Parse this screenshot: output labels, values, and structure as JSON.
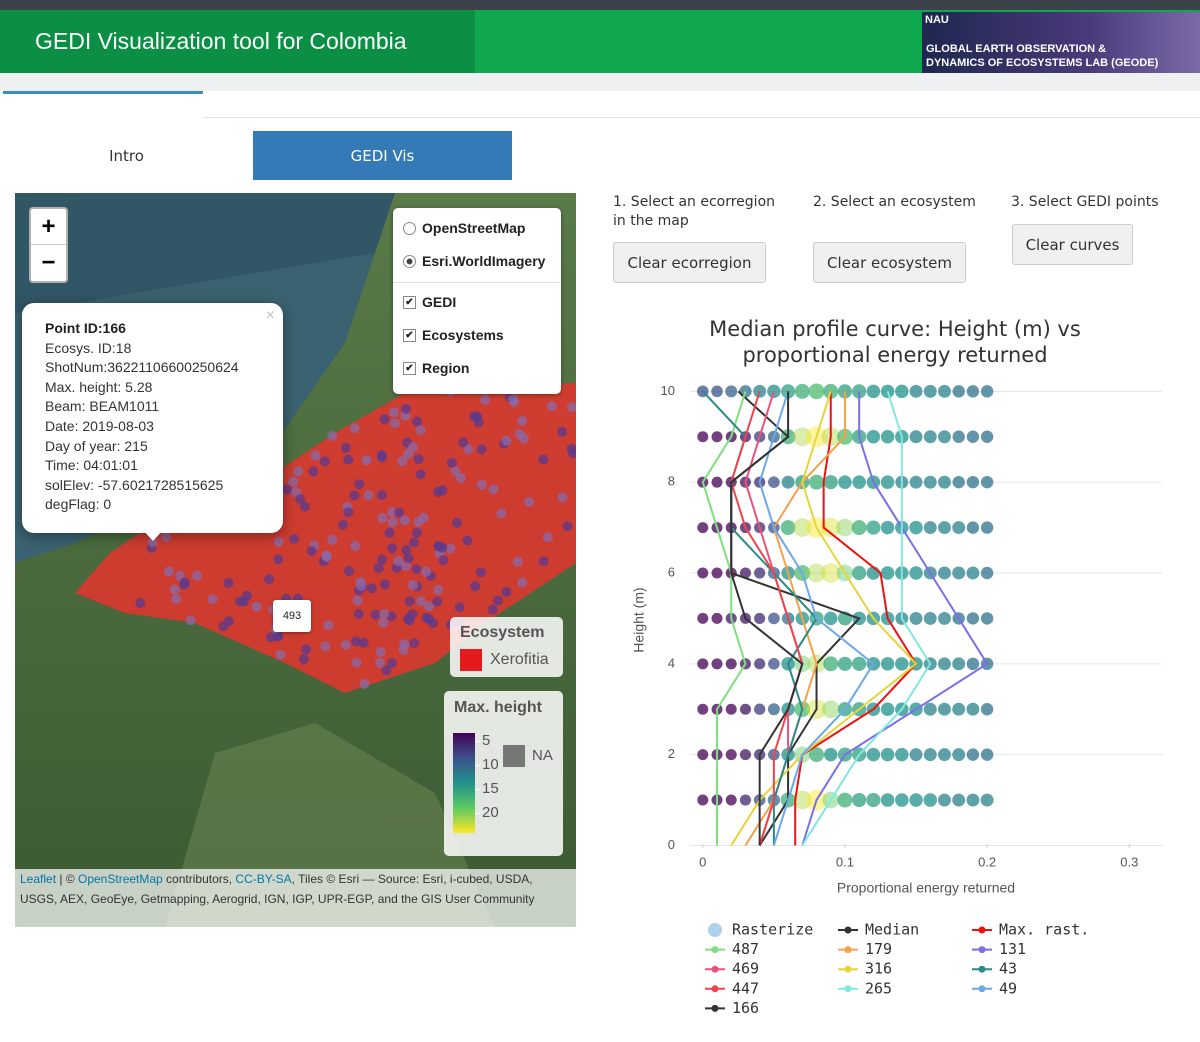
{
  "header": {
    "title": "GEDI Visualization tool for Colombia",
    "logo_lines": [
      "NAU",
      "GLOBAL EARTH OBSERVATION &",
      "DYNAMICS OF ECOSYSTEMS LAB (GEODE)"
    ]
  },
  "tabs": [
    "Intro",
    "GEDI Vis"
  ],
  "map": {
    "zoom": [
      "+",
      "−"
    ],
    "basemaps": [
      "OpenStreetMap",
      "Esri.WorldImagery"
    ],
    "overlays": [
      "GEDI",
      "Ecosystems",
      "Region"
    ],
    "popup": {
      "close": "×",
      "title": "Point ID:166",
      "lines": [
        "Ecosys. ID:18",
        "ShotNum:36221106600250624",
        "Max. height: 5.28",
        "Beam: BEAM1011",
        "Date: 2019-08-03",
        "Day of year: 215",
        "Time: 04:01:01",
        "solElev: -57.6021728515625",
        "degFlag: 0"
      ]
    },
    "marker_label": "493",
    "ecosystem_legend": {
      "title": "Ecosystem",
      "items": [
        "Xerofitia"
      ]
    },
    "height_legend": {
      "title": "Max. height",
      "ticks": [
        5,
        10,
        15,
        20
      ],
      "na": "NA"
    },
    "attribution": {
      "link1": "Leaflet",
      "sep1": " | © ",
      "link2": "OpenStreetMap",
      "sep2": " contributors, ",
      "link3": "CC-BY-SA",
      "rest": ", Tiles © Esri — Source: Esri, i-cubed, USDA, USGS, AEX, GeoEye, Getmapping, Aerogrid, IGN, IGP, UPR-EGP, and the GIS User Community"
    }
  },
  "steps": [
    {
      "label": "1. Select an ecorregion in the map",
      "button": "Clear ecorregion"
    },
    {
      "label": "2. Select an ecosystem",
      "button": "Clear ecosystem"
    },
    {
      "label": "3. Select GEDI points",
      "button": "Clear curves"
    }
  ],
  "chart_data": {
    "type": "line",
    "title": "Median profile curve: Height (m) vs proportional energy returned",
    "x_label": "Proportional energy returned",
    "y_label": "Height (m)",
    "xlim": [
      -0.009,
      0.323
    ],
    "ylim": [
      -0.1,
      10.25
    ],
    "xticks": [
      0,
      0.1,
      0.2,
      0.3
    ],
    "yticks": [
      0,
      2,
      4,
      6,
      8,
      10
    ],
    "grid": true,
    "heights": [
      0,
      1,
      2,
      3,
      4,
      5,
      6,
      7,
      8,
      9,
      10
    ],
    "raster": {
      "name": "Rasterize",
      "color": "#aed1ee",
      "x": [
        0,
        0.01,
        0.02,
        0.03,
        0.04,
        0.05,
        0.06,
        0.07,
        0.08,
        0.09,
        0.1,
        0.11,
        0.12,
        0.13,
        0.14,
        0.15,
        0.16,
        0.17,
        0.18,
        0.19,
        0.2
      ],
      "y": [
        1,
        2,
        3,
        4,
        5,
        6,
        7,
        8,
        9,
        10
      ],
      "values": [
        [
          4,
          4,
          4,
          6,
          8,
          10,
          14,
          18,
          20,
          16,
          14,
          13,
          13,
          12,
          12,
          12,
          12,
          11,
          11,
          11,
          11
        ],
        [
          4,
          4,
          4,
          5,
          6,
          8,
          12,
          16,
          14,
          12,
          13,
          13,
          12,
          12,
          12,
          11,
          11,
          11,
          11,
          10,
          10
        ],
        [
          4,
          4,
          4,
          5,
          7,
          9,
          12,
          15,
          19,
          17,
          13,
          13,
          12,
          12,
          12,
          12,
          11,
          11,
          11,
          11,
          10
        ],
        [
          4,
          4,
          4,
          5,
          6,
          8,
          12,
          16,
          18,
          14,
          13,
          13,
          12,
          12,
          12,
          12,
          11,
          11,
          11,
          10,
          10
        ],
        [
          4,
          4,
          5,
          5,
          6,
          8,
          10,
          12,
          13,
          12,
          13,
          12,
          12,
          12,
          11,
          11,
          11,
          11,
          10,
          10,
          10
        ],
        [
          4,
          4,
          4,
          5,
          6,
          9,
          12,
          15,
          18,
          19,
          16,
          13,
          12,
          12,
          12,
          12,
          11,
          11,
          11,
          11,
          10
        ],
        [
          4,
          4,
          4,
          5,
          6,
          8,
          14,
          18,
          20,
          19,
          17,
          14,
          13,
          12,
          12,
          12,
          11,
          11,
          11,
          10,
          10
        ],
        [
          4,
          4,
          4,
          5,
          6,
          8,
          11,
          13,
          14,
          13,
          12,
          12,
          12,
          12,
          11,
          11,
          11,
          11,
          10,
          10,
          10
        ],
        [
          4,
          4,
          4,
          5,
          7,
          9,
          14,
          18,
          20,
          18,
          15,
          13,
          12,
          12,
          12,
          11,
          11,
          11,
          10,
          10,
          10
        ],
        [
          8,
          8,
          9,
          10,
          11,
          12,
          13,
          14,
          15,
          14,
          13,
          13,
          12,
          12,
          12,
          11,
          11,
          11,
          10,
          10,
          10
        ]
      ]
    },
    "series": [
      {
        "name": "Median",
        "color": "#333333",
        "values": [
          0.04,
          0.06,
          0.06,
          0.08,
          0.08,
          0.11,
          0.02,
          0.02,
          0.02,
          0.06,
          0.025
        ]
      },
      {
        "name": "Max. rast.",
        "color": "#ee1111",
        "values": [
          0.065,
          0.065,
          0.07,
          0.12,
          0.15,
          0.13,
          0.125,
          0.085,
          0.085,
          0.09,
          0.09
        ]
      },
      {
        "name": "487",
        "color": "#7de07d",
        "values": [
          0.01,
          0.01,
          0.01,
          0.01,
          0.03,
          0.02,
          0.02,
          0.01,
          0,
          0.02,
          0.03
        ]
      },
      {
        "name": "179",
        "color": "#f5a04a",
        "values": [
          0.03,
          0.05,
          0.06,
          0.07,
          0.08,
          0.07,
          0.06,
          0.05,
          0.07,
          0.1,
          0.1
        ]
      },
      {
        "name": "131",
        "color": "#7b6fe8",
        "values": [
          0.07,
          0.08,
          0.1,
          0.15,
          0.2,
          0.18,
          0.16,
          0.14,
          0.12,
          0.11,
          0.11
        ]
      },
      {
        "name": "469",
        "color": "#e8517a",
        "values": [
          0.04,
          0.05,
          0.06,
          0.06,
          0.07,
          0.06,
          0.05,
          0.04,
          0.03,
          0.04,
          0.05
        ]
      },
      {
        "name": "316",
        "color": "#e8d43a",
        "values": [
          0.02,
          0.04,
          0.07,
          0.11,
          0.15,
          0.12,
          0.1,
          0.08,
          0.07,
          0.08,
          0.09
        ]
      },
      {
        "name": "43",
        "color": "#2a8a8a",
        "values": [
          0.05,
          0.05,
          0.06,
          0.07,
          0.06,
          0.08,
          0.05,
          0.02,
          0.02,
          0.03,
          0
        ]
      },
      {
        "name": "447",
        "color": "#f0434d",
        "values": [
          0.04,
          0.05,
          0.05,
          0.06,
          0.07,
          0.06,
          0.05,
          0.03,
          0.02,
          0.03,
          0.04
        ]
      },
      {
        "name": "265",
        "color": "#80e8e0",
        "values": [
          0.07,
          0.09,
          0.11,
          0.14,
          0.16,
          0.14,
          0.14,
          0.14,
          0.14,
          0.14,
          0.13
        ]
      },
      {
        "name": "49",
        "color": "#6aa8e8",
        "values": [
          0.05,
          0.06,
          0.07,
          0.1,
          0.12,
          0.08,
          0.07,
          0.05,
          0.04,
          0.05,
          0.06
        ]
      },
      {
        "name": "166",
        "color": "#333333",
        "values": [
          0.04,
          0.04,
          0.04,
          0.06,
          0.07,
          0.03,
          0.02,
          0.02,
          0.02,
          0.06,
          0.06
        ]
      }
    ]
  }
}
